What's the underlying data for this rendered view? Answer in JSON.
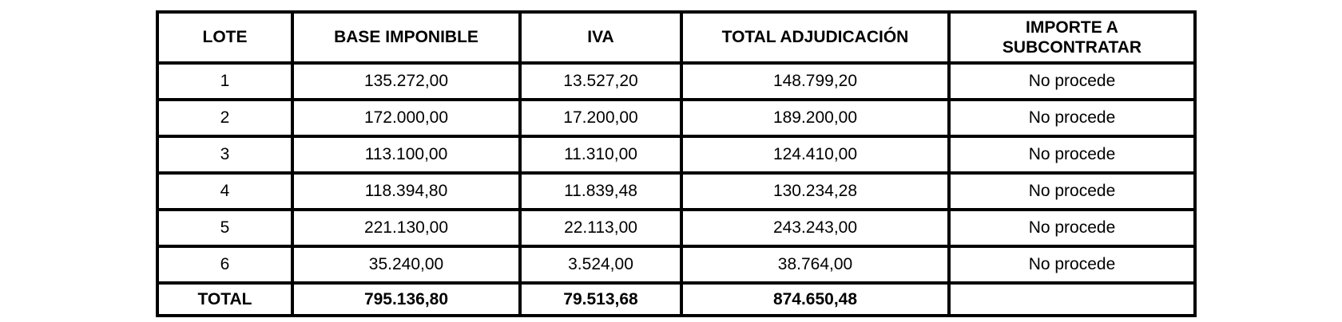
{
  "colors": {
    "border": "#000000",
    "text": "#000000",
    "background": "#ffffff"
  },
  "table": {
    "columns": [
      {
        "key": "lote",
        "label": "LOTE"
      },
      {
        "key": "base",
        "label": "BASE IMPONIBLE"
      },
      {
        "key": "iva",
        "label": "IVA"
      },
      {
        "key": "total",
        "label": "TOTAL ADJUDICACIÓN"
      },
      {
        "key": "sub",
        "label": "IMPORTE A\nSUBCONTRATAR"
      }
    ],
    "rows": [
      {
        "lote": "1",
        "base": "135.272,00",
        "iva": "13.527,20",
        "total": "148.799,20",
        "sub": "No procede"
      },
      {
        "lote": "2",
        "base": "172.000,00",
        "iva": "17.200,00",
        "total": "189.200,00",
        "sub": "No procede"
      },
      {
        "lote": "3",
        "base": "113.100,00",
        "iva": "11.310,00",
        "total": "124.410,00",
        "sub": "No procede"
      },
      {
        "lote": "4",
        "base": "118.394,80",
        "iva": "11.839,48",
        "total": "130.234,28",
        "sub": "No procede"
      },
      {
        "lote": "5",
        "base": "221.130,00",
        "iva": "22.113,00",
        "total": "243.243,00",
        "sub": "No procede"
      },
      {
        "lote": "6",
        "base": "35.240,00",
        "iva": "3.524,00",
        "total": "38.764,00",
        "sub": "No procede"
      }
    ],
    "total_row": {
      "lote": "TOTAL",
      "base": "795.136,80",
      "iva": "79.513,68",
      "total": "874.650,48",
      "sub": ""
    }
  }
}
